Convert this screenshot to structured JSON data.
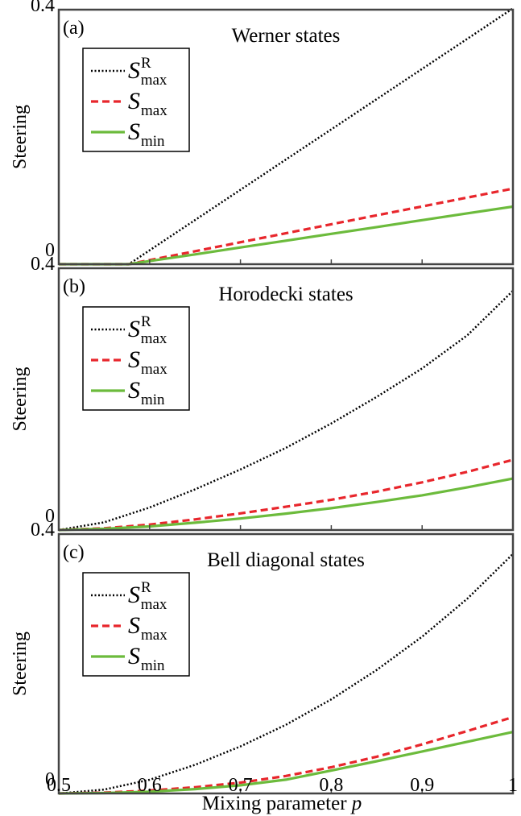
{
  "figure": {
    "xlabel_text": "Mixing parameter ",
    "xlabel_var": "p"
  },
  "chart_data": [
    {
      "type": "line",
      "panel_label": "(a)",
      "title": "Werner states",
      "ylabel": "Steering",
      "xlim": [
        0.5,
        1.0
      ],
      "ylim": [
        0,
        0.4
      ],
      "xticks": [
        0.5,
        0.6,
        0.7,
        0.8,
        0.9,
        1
      ],
      "yticks": [
        0,
        0.4
      ],
      "legend_position": "top-left",
      "x": [
        0.5,
        0.55,
        0.577,
        0.6,
        0.65,
        0.7,
        0.75,
        0.8,
        0.85,
        0.9,
        0.95,
        1.0
      ],
      "series": [
        {
          "name": "S_max^R",
          "label_main": "S",
          "label_sub": "max",
          "label_sup": "R",
          "style": "dotted",
          "color": "#000000",
          "values": [
            0,
            0,
            0,
            0.0219,
            0.0694,
            0.1169,
            0.1644,
            0.2119,
            0.2594,
            0.3069,
            0.3544,
            0.402
          ]
        },
        {
          "name": "S_max",
          "label_main": "S",
          "label_sub": "max",
          "label_sup": "",
          "style": "dashed",
          "color": "#e8262c",
          "values": [
            0,
            0,
            0,
            0.0065,
            0.0204,
            0.0345,
            0.0486,
            0.0628,
            0.0768,
            0.0908,
            0.1048,
            0.1189
          ]
        },
        {
          "name": "S_min",
          "label_main": "S",
          "label_sub": "min",
          "label_sup": "",
          "style": "solid",
          "color": "#6cbb3c",
          "values": [
            0,
            0,
            0,
            0.0049,
            0.0155,
            0.0263,
            0.037,
            0.0477,
            0.0584,
            0.0692,
            0.08,
            0.0905
          ]
        }
      ]
    },
    {
      "type": "line",
      "panel_label": "(b)",
      "title": "Horodecki states",
      "ylabel": "Steering",
      "xlim": [
        0.5,
        1.0
      ],
      "ylim": [
        0,
        0.4
      ],
      "xticks": [
        0.5,
        0.6,
        0.7,
        0.8,
        0.9,
        1
      ],
      "yticks": [
        0,
        0.4
      ],
      "legend_position": "top-left",
      "x": [
        0.5,
        0.55,
        0.6,
        0.65,
        0.7,
        0.75,
        0.8,
        0.85,
        0.9,
        0.95,
        1.0
      ],
      "series": [
        {
          "name": "S_max^R",
          "label_main": "S",
          "label_sub": "max",
          "label_sup": "R",
          "style": "dotted",
          "color": "#000000",
          "values": [
            0,
            0.0118,
            0.0345,
            0.0621,
            0.0925,
            0.1256,
            0.1628,
            0.2034,
            0.2469,
            0.2979,
            0.3655
          ]
        },
        {
          "name": "S_max",
          "label_main": "S",
          "label_sub": "max",
          "label_sup": "",
          "style": "dashed",
          "color": "#e8262c",
          "values": [
            0,
            0.0027,
            0.0084,
            0.0163,
            0.0255,
            0.0356,
            0.0463,
            0.0587,
            0.0729,
            0.089,
            0.1073
          ]
        },
        {
          "name": "S_min",
          "label_main": "S",
          "label_sub": "min",
          "label_sup": "",
          "style": "solid",
          "color": "#6cbb3c",
          "values": [
            0,
            0.0018,
            0.0055,
            0.0112,
            0.0176,
            0.0251,
            0.0334,
            0.0428,
            0.0531,
            0.0654,
            0.0788
          ]
        }
      ]
    },
    {
      "type": "line",
      "panel_label": "(c)",
      "title": "Bell diagonal states",
      "ylabel": "Steering",
      "xlim": [
        0.5,
        1.0
      ],
      "ylim": [
        0,
        0.4
      ],
      "xticks": [
        0.5,
        0.6,
        0.7,
        0.8,
        0.9,
        1
      ],
      "yticks": [
        0,
        0.4
      ],
      "legend_position": "top-left",
      "x": [
        0.5,
        0.55,
        0.6,
        0.65,
        0.7,
        0.75,
        0.8,
        0.85,
        0.9,
        0.95,
        1.0
      ],
      "series": [
        {
          "name": "S_max^R",
          "label_main": "S",
          "label_sub": "max",
          "label_sup": "R",
          "style": "dotted",
          "color": "#000000",
          "values": [
            0,
            0.006,
            0.0211,
            0.0441,
            0.0725,
            0.1058,
            0.1451,
            0.1904,
            0.2417,
            0.3006,
            0.3693
          ]
        },
        {
          "name": "S_max",
          "label_main": "S",
          "label_sub": "max",
          "label_sup": "",
          "style": "dashed",
          "color": "#e8262c",
          "values": [
            0,
            0.0012,
            0.0045,
            0.0096,
            0.0166,
            0.0269,
            0.0404,
            0.0567,
            0.0756,
            0.0964,
            0.1178
          ]
        },
        {
          "name": "S_min",
          "label_main": "S",
          "label_sub": "min",
          "label_sup": "",
          "style": "solid",
          "color": "#6cbb3c",
          "values": [
            0,
            0.0006,
            0.0027,
            0.0067,
            0.0126,
            0.0213,
            0.0353,
            0.0497,
            0.0647,
            0.0797,
            0.0948
          ]
        }
      ]
    }
  ]
}
